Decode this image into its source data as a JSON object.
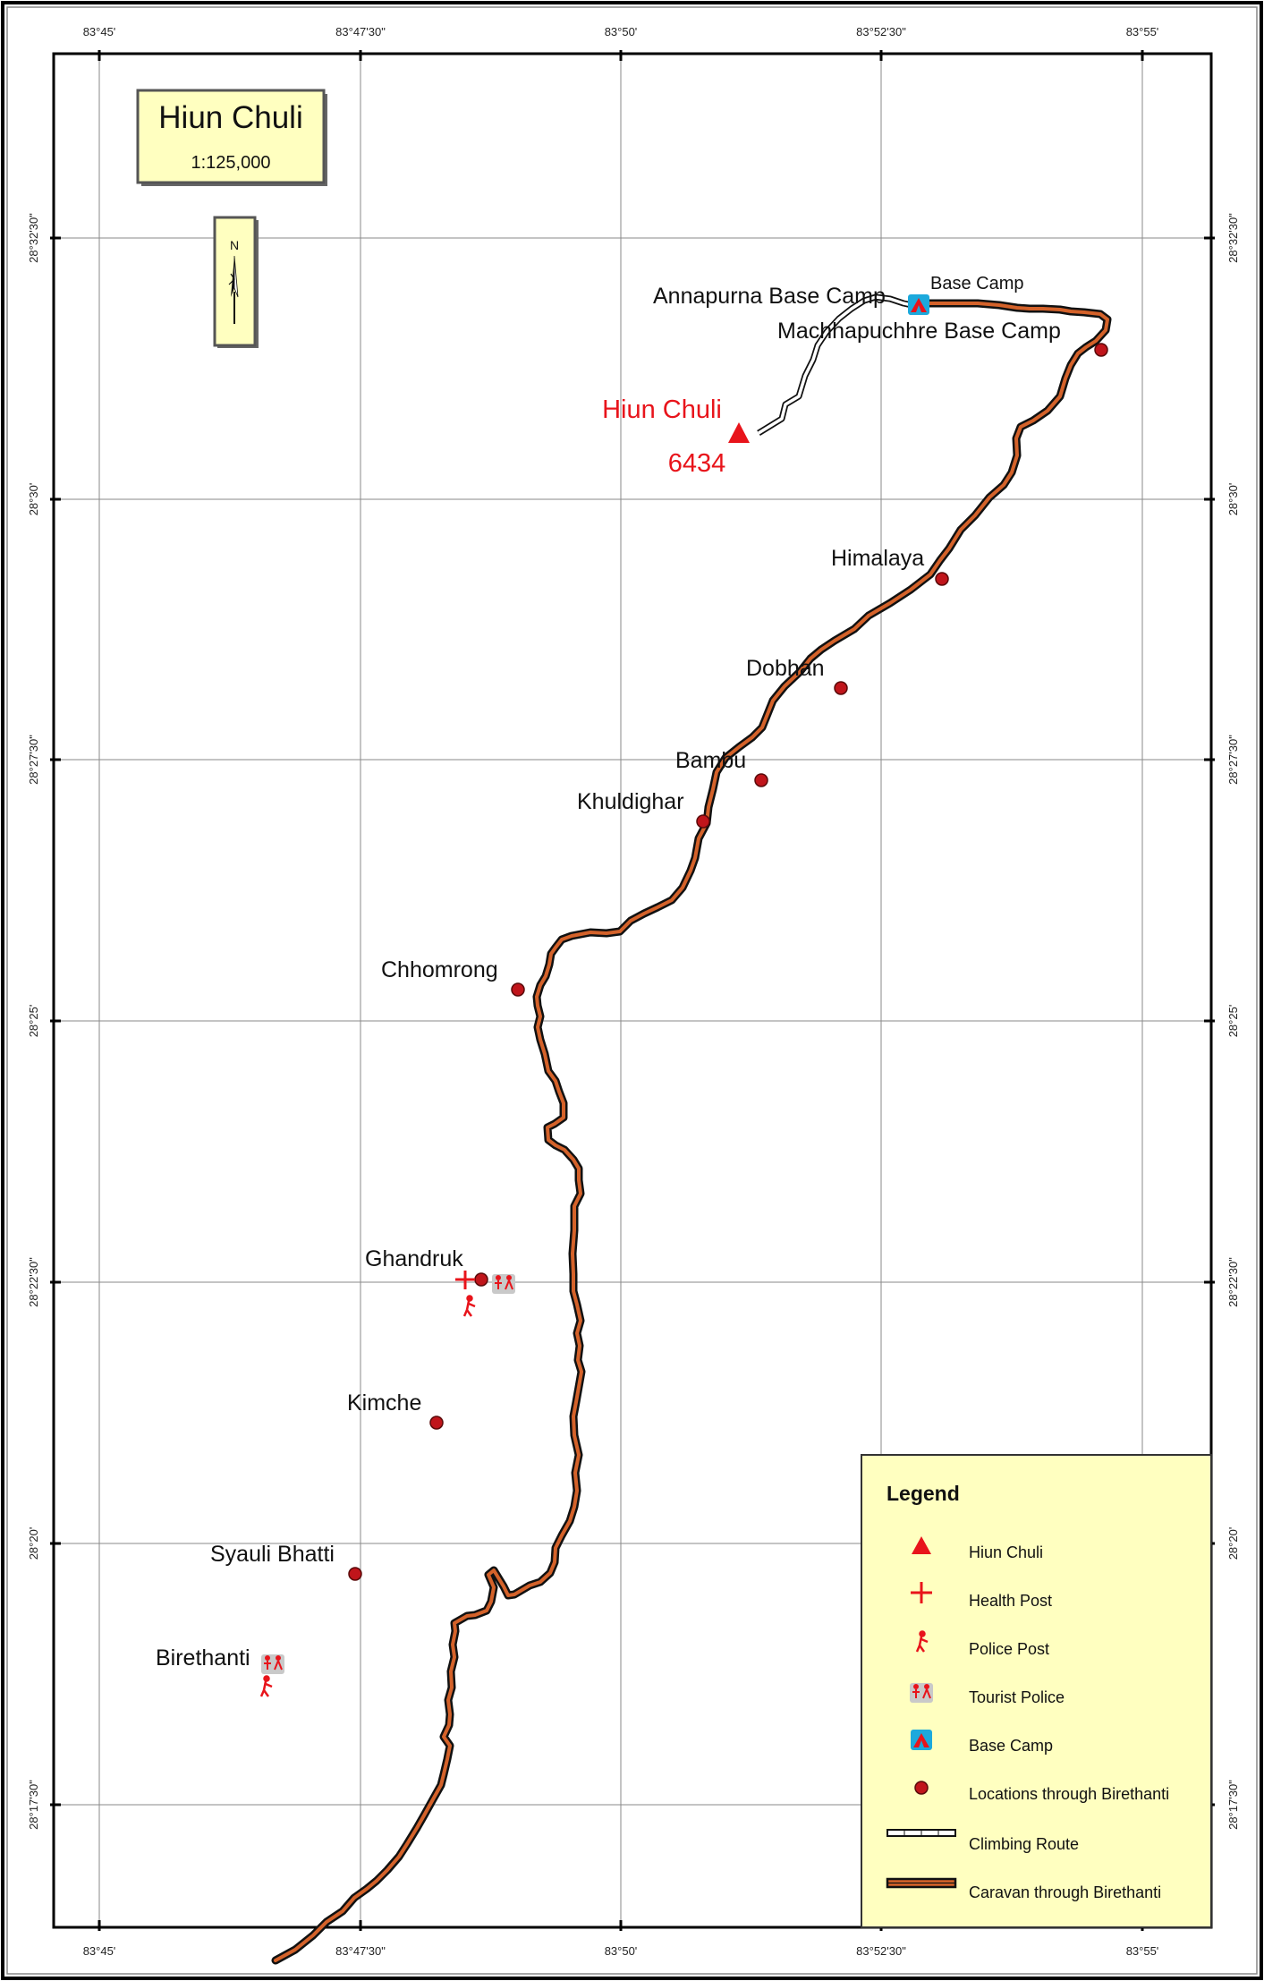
{
  "title": {
    "name": "Hiun Chuli",
    "scale": "1:125,000"
  },
  "north_arrow": {
    "label": "N"
  },
  "summit": {
    "name": "Hiun Chuli",
    "elevation": "6434"
  },
  "lon_ticks": [
    "83°45'",
    "83°47'30\"",
    "83°50'",
    "83°52'30\"",
    "83°55'"
  ],
  "lat_ticks": [
    "28°32'30\"",
    "28°30'",
    "28°27'30\"",
    "28°25'",
    "28°22'30\"",
    "28°20'",
    "28°17'30\""
  ],
  "places": [
    {
      "name": "Annapurna Base Camp"
    },
    {
      "name": "Base Camp"
    },
    {
      "name": "Machhapuchhre Base Camp"
    },
    {
      "name": "Himalaya"
    },
    {
      "name": "Dobhan"
    },
    {
      "name": "Bambu"
    },
    {
      "name": "Khuldighar"
    },
    {
      "name": "Chhomrong"
    },
    {
      "name": "Ghandruk"
    },
    {
      "name": "Kimche"
    },
    {
      "name": "Syauli Bhatti"
    },
    {
      "name": "Birethanti"
    }
  ],
  "legend": {
    "title": "Legend",
    "items": [
      {
        "label": "Hiun Chuli",
        "icon": "peak-triangle-icon"
      },
      {
        "label": "Health Post",
        "icon": "health-cross-icon"
      },
      {
        "label": "Police Post",
        "icon": "police-figure-icon"
      },
      {
        "label": "Tourist Police",
        "icon": "tourist-police-icon"
      },
      {
        "label": "Base Camp",
        "icon": "tent-icon"
      },
      {
        "label": "Locations through Birethanti",
        "icon": "location-dot-icon"
      },
      {
        "label": "Climbing Route",
        "icon": "climbing-route-icon"
      },
      {
        "label": "Caravan through Birethanti",
        "icon": "caravan-route-icon"
      }
    ]
  },
  "colors": {
    "peak_red": "#e8141b",
    "location_dot": "#c0151b",
    "caravan_route": "#d4622a",
    "base_camp_blue": "#1ca9dc",
    "panel_fill": "#ffffc0"
  }
}
